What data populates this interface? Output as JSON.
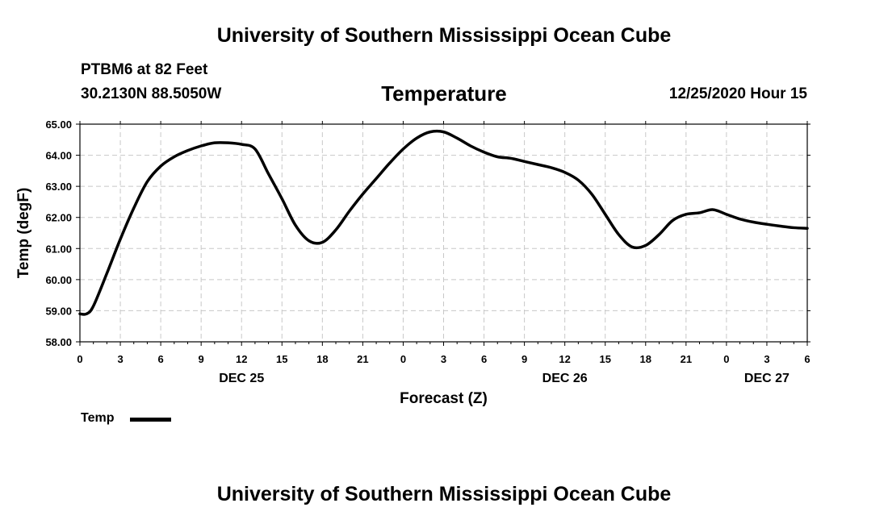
{
  "header": {
    "title": "University of Southern Mississippi Ocean Cube",
    "station": "PTBM6 at 82 Feet",
    "coordinates": "30.2130N 88.5050W",
    "variable_title": "Temperature",
    "datetime": "12/25/2020 Hour 15"
  },
  "footer": {
    "title": "University of Southern Mississippi Ocean Cube"
  },
  "legend": {
    "label": "Temp"
  },
  "chart_data": {
    "type": "line",
    "title": "Temperature",
    "xlabel": "Forecast (Z)",
    "ylabel": "Temp (degF)",
    "ylim": [
      58.0,
      65.0
    ],
    "yticks": [
      "58.00",
      "59.00",
      "60.00",
      "61.00",
      "62.00",
      "63.00",
      "64.00",
      "65.00"
    ],
    "xlim": [
      0,
      54
    ],
    "xtick_labels": [
      "0",
      "3",
      "6",
      "9",
      "12",
      "15",
      "18",
      "21",
      "0",
      "3",
      "6",
      "9",
      "12",
      "15",
      "18",
      "21",
      "0",
      "3",
      "6"
    ],
    "date_labels": [
      {
        "label": "DEC 25",
        "hour": 12
      },
      {
        "label": "DEC 26",
        "hour": 36
      },
      {
        "label": "DEC 27",
        "hour": 51
      }
    ],
    "grid": true,
    "series": [
      {
        "name": "Temp",
        "color": "#000000",
        "x": [
          0,
          0.5,
          1,
          2,
          3,
          4,
          5,
          6,
          7,
          8,
          9,
          10,
          11,
          12,
          13,
          14,
          15,
          16,
          17,
          18,
          19,
          20,
          21,
          22,
          23,
          24,
          25,
          26,
          27,
          28,
          29,
          30,
          31,
          32,
          33,
          34,
          35,
          36,
          37,
          38,
          39,
          40,
          41,
          42,
          43,
          44,
          45,
          46,
          47,
          48,
          49,
          50,
          51,
          52,
          53,
          54
        ],
        "values": [
          58.9,
          58.9,
          59.15,
          60.2,
          61.3,
          62.3,
          63.15,
          63.65,
          63.95,
          64.15,
          64.3,
          64.4,
          64.4,
          64.35,
          64.2,
          63.4,
          62.6,
          61.75,
          61.25,
          61.2,
          61.6,
          62.2,
          62.75,
          63.25,
          63.75,
          64.2,
          64.55,
          64.75,
          64.75,
          64.55,
          64.3,
          64.1,
          63.95,
          63.9,
          63.8,
          63.7,
          63.6,
          63.45,
          63.2,
          62.75,
          62.1,
          61.45,
          61.05,
          61.1,
          61.45,
          61.9,
          62.1,
          62.15,
          62.25,
          62.1,
          61.95,
          61.85,
          61.78,
          61.72,
          61.67,
          61.65
        ]
      }
    ]
  }
}
